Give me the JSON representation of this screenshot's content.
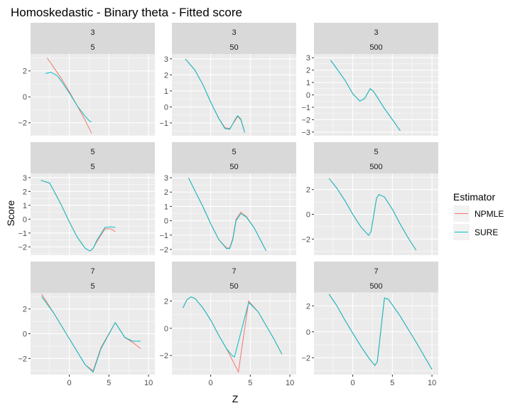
{
  "title": "Homoskedastic - Binary theta - Fitted score",
  "xlabel": "Z",
  "ylabel": "Score",
  "legend": {
    "title": "Estimator",
    "entries": [
      {
        "label": "NPMLE",
        "color": "#F8766D"
      },
      {
        "label": "SURE",
        "color": "#00BFC4"
      }
    ]
  },
  "colors": {
    "panel_bg": "#EBEBEB",
    "strip_bg": "#D9D9D9",
    "grid": "#FFFFFF",
    "axis_text": "#4D4D4D",
    "strip_text": "#1A1A1A"
  },
  "chart_data": {
    "type": "line",
    "x_ticks": [
      0,
      5,
      10
    ],
    "row_strip_labels": [
      "3",
      "5",
      "7"
    ],
    "col_strip_labels": [
      "5",
      "50",
      "500"
    ],
    "panels": [
      {
        "strip1": "3",
        "strip2": "5",
        "ylim": [
          -3.0,
          3.3
        ],
        "yticks": [
          -2,
          0,
          2
        ],
        "series": [
          {
            "name": "NPMLE",
            "x": [
              -2.8,
              -2.0,
              -1.0,
              0.0,
              1.0,
              2.0,
              2.8
            ],
            "y": [
              3.0,
              2.3,
              1.4,
              0.4,
              -0.7,
              -1.8,
              -2.8
            ]
          },
          {
            "name": "SURE",
            "x": [
              -3.0,
              -2.3,
              -1.5,
              -1.0,
              0.0,
              1.0,
              2.0,
              2.6,
              2.8
            ],
            "y": [
              1.8,
              1.9,
              1.6,
              1.2,
              0.3,
              -0.7,
              -1.5,
              -1.9,
              -1.9
            ]
          }
        ]
      },
      {
        "strip1": "3",
        "strip2": "50",
        "ylim": [
          -1.8,
          3.3
        ],
        "yticks": [
          -1,
          0,
          1,
          2,
          3
        ],
        "series": [
          {
            "name": "NPMLE",
            "x": [
              -3.2,
              -2.0,
              -1.0,
              0.0,
              1.0,
              1.8,
              2.4,
              3.0,
              3.4,
              3.8,
              4.3
            ],
            "y": [
              3.0,
              2.3,
              1.4,
              0.3,
              -0.7,
              -1.3,
              -1.35,
              -0.9,
              -0.6,
              -0.8,
              -1.6
            ]
          },
          {
            "name": "SURE",
            "x": [
              -3.2,
              -2.0,
              -1.0,
              0.0,
              1.0,
              1.8,
              2.4,
              3.0,
              3.4,
              3.8,
              4.3
            ],
            "y": [
              3.0,
              2.3,
              1.4,
              0.3,
              -0.7,
              -1.35,
              -1.4,
              -0.85,
              -0.55,
              -0.75,
              -1.6
            ]
          }
        ]
      },
      {
        "strip1": "3",
        "strip2": "500",
        "ylim": [
          -3.3,
          3.3
        ],
        "yticks": [
          -3,
          -2,
          -1,
          0,
          1,
          2,
          3
        ],
        "series": [
          {
            "name": "NPMLE",
            "x": [
              -2.8,
              -2.0,
              -1.0,
              0.0,
              0.9,
              1.5,
              2.2,
              2.6,
              3.0,
              4.0,
              5.0,
              6.0
            ],
            "y": [
              2.8,
              2.1,
              1.2,
              0.1,
              -0.5,
              -0.3,
              0.5,
              0.3,
              -0.1,
              -1.1,
              -2.0,
              -2.9
            ]
          },
          {
            "name": "SURE",
            "x": [
              -2.8,
              -2.0,
              -1.0,
              0.0,
              0.9,
              1.5,
              2.2,
              2.6,
              3.0,
              4.0,
              5.0,
              6.0
            ],
            "y": [
              2.8,
              2.1,
              1.2,
              0.1,
              -0.5,
              -0.3,
              0.5,
              0.3,
              -0.1,
              -1.1,
              -2.0,
              -2.9
            ]
          }
        ]
      },
      {
        "strip1": "5",
        "strip2": "5",
        "ylim": [
          -2.6,
          3.3
        ],
        "yticks": [
          -2,
          -1,
          0,
          1,
          2,
          3
        ],
        "series": [
          {
            "name": "NPMLE",
            "x": [
              -3.6,
              -2.5,
              -2.0,
              -1.0,
              0.0,
              1.0,
              2.0,
              2.6,
              3.0,
              3.5,
              4.5,
              5.3,
              5.8
            ],
            "y": [
              2.8,
              2.6,
              2.1,
              1.0,
              -0.2,
              -1.3,
              -2.1,
              -2.3,
              -2.1,
              -1.6,
              -0.7,
              -0.7,
              -0.9
            ]
          },
          {
            "name": "SURE",
            "x": [
              -3.6,
              -2.5,
              -2.0,
              -1.0,
              0.0,
              1.0,
              2.0,
              2.6,
              3.0,
              3.5,
              4.5,
              5.3,
              5.8
            ],
            "y": [
              2.8,
              2.6,
              2.1,
              1.0,
              -0.2,
              -1.3,
              -2.1,
              -2.3,
              -2.1,
              -1.5,
              -0.6,
              -0.55,
              -0.6
            ]
          }
        ]
      },
      {
        "strip1": "5",
        "strip2": "50",
        "ylim": [
          -2.4,
          3.3
        ],
        "yticks": [
          -2,
          -1,
          0,
          1,
          2,
          3
        ],
        "series": [
          {
            "name": "NPMLE",
            "x": [
              -2.8,
              -2.0,
              -1.0,
              0.0,
              1.0,
              2.0,
              2.4,
              2.8,
              3.2,
              3.8,
              4.5,
              5.5,
              7.0
            ],
            "y": [
              3.0,
              2.1,
              1.0,
              -0.2,
              -1.3,
              -1.9,
              -1.9,
              -1.2,
              0.1,
              0.6,
              0.3,
              -0.5,
              -2.1
            ]
          },
          {
            "name": "SURE",
            "x": [
              -2.8,
              -2.0,
              -1.0,
              0.0,
              1.0,
              2.0,
              2.4,
              2.8,
              3.2,
              3.8,
              4.5,
              5.5,
              7.0
            ],
            "y": [
              3.0,
              2.1,
              1.0,
              -0.2,
              -1.3,
              -1.95,
              -1.95,
              -1.3,
              0.0,
              0.5,
              0.25,
              -0.5,
              -2.1
            ]
          }
        ]
      },
      {
        "strip1": "5",
        "strip2": "500",
        "ylim": [
          -3.3,
          3.3
        ],
        "yticks": [
          -2,
          0,
          2
        ],
        "series": [
          {
            "name": "NPMLE",
            "x": [
              -3.0,
              -2.0,
              -1.0,
              0.0,
              1.0,
              2.0,
              2.3,
              3.0,
              3.3,
              4.0,
              5.0,
              6.0,
              7.0,
              8.0
            ],
            "y": [
              2.9,
              2.1,
              1.1,
              0.0,
              -1.0,
              -1.7,
              -1.4,
              1.3,
              1.6,
              1.4,
              0.4,
              -0.8,
              -1.9,
              -2.9
            ]
          },
          {
            "name": "SURE",
            "x": [
              -3.0,
              -2.0,
              -1.0,
              0.0,
              1.0,
              2.0,
              2.3,
              3.0,
              3.3,
              4.0,
              5.0,
              6.0,
              7.0,
              8.0
            ],
            "y": [
              2.9,
              2.1,
              1.1,
              0.0,
              -1.0,
              -1.7,
              -1.4,
              1.3,
              1.6,
              1.4,
              0.4,
              -0.8,
              -1.9,
              -2.9
            ]
          }
        ]
      },
      {
        "strip1": "7",
        "strip2": "5",
        "ylim": [
          -3.3,
          3.3
        ],
        "yticks": [
          -2,
          0,
          2
        ],
        "series": [
          {
            "name": "NPMLE",
            "x": [
              -3.5,
              -2.0,
              0.0,
              2.0,
              3.0,
              4.0,
              5.8,
              7.0,
              8.0,
              9.0
            ],
            "y": [
              3.2,
              1.7,
              -0.4,
              -2.5,
              -3.0,
              -1.1,
              0.9,
              -0.3,
              -0.7,
              -1.2
            ]
          },
          {
            "name": "SURE",
            "x": [
              -3.5,
              -2.0,
              0.0,
              2.0,
              3.0,
              4.0,
              5.8,
              7.0,
              8.0,
              9.0
            ],
            "y": [
              3.0,
              1.7,
              -0.4,
              -2.5,
              -3.1,
              -1.2,
              0.9,
              -0.3,
              -0.6,
              -0.6
            ]
          }
        ]
      },
      {
        "strip1": "7",
        "strip2": "50",
        "ylim": [
          -3.4,
          2.6
        ],
        "yticks": [
          -2,
          0,
          2
        ],
        "series": [
          {
            "name": "NPMLE",
            "x": [
              -3.5,
              -3.0,
              -2.5,
              -2.0,
              -1.0,
              0.0,
              1.0,
              2.0,
              3.5,
              4.8,
              6.0,
              7.0,
              8.0,
              9.0
            ],
            "y": [
              1.5,
              2.1,
              2.3,
              2.2,
              1.5,
              0.6,
              -0.5,
              -1.5,
              -3.2,
              2.0,
              1.2,
              0.2,
              -0.8,
              -1.9
            ]
          },
          {
            "name": "SURE",
            "x": [
              -3.5,
              -3.0,
              -2.5,
              -2.0,
              -1.0,
              0.0,
              1.0,
              2.0,
              2.7,
              3.0,
              4.8,
              6.0,
              7.0,
              8.0,
              9.0
            ],
            "y": [
              1.5,
              2.1,
              2.3,
              2.2,
              1.5,
              0.6,
              -0.5,
              -1.5,
              -2.0,
              -2.1,
              1.9,
              1.2,
              0.2,
              -0.8,
              -1.9
            ]
          }
        ]
      },
      {
        "strip1": "7",
        "strip2": "500",
        "ylim": [
          -3.3,
          3.0
        ],
        "yticks": [
          -2,
          0,
          2
        ],
        "series": [
          {
            "name": "NPMLE",
            "x": [
              -3.0,
              -2.0,
              -1.0,
              0.0,
              1.0,
              2.0,
              2.8,
              3.1,
              4.0,
              4.5,
              6.0,
              8.0,
              10.0
            ],
            "y": [
              2.9,
              2.0,
              0.9,
              -0.1,
              -1.1,
              -2.0,
              -2.6,
              -2.3,
              2.6,
              2.5,
              1.2,
              -0.8,
              -2.9
            ]
          },
          {
            "name": "SURE",
            "x": [
              -3.0,
              -2.0,
              -1.0,
              0.0,
              1.0,
              2.0,
              2.8,
              3.1,
              4.0,
              4.5,
              6.0,
              8.0,
              10.0
            ],
            "y": [
              2.9,
              2.0,
              0.9,
              -0.1,
              -1.1,
              -2.0,
              -2.6,
              -2.3,
              2.6,
              2.5,
              1.2,
              -0.8,
              -2.9
            ]
          }
        ]
      }
    ],
    "grid": true,
    "legend_position": "right"
  }
}
